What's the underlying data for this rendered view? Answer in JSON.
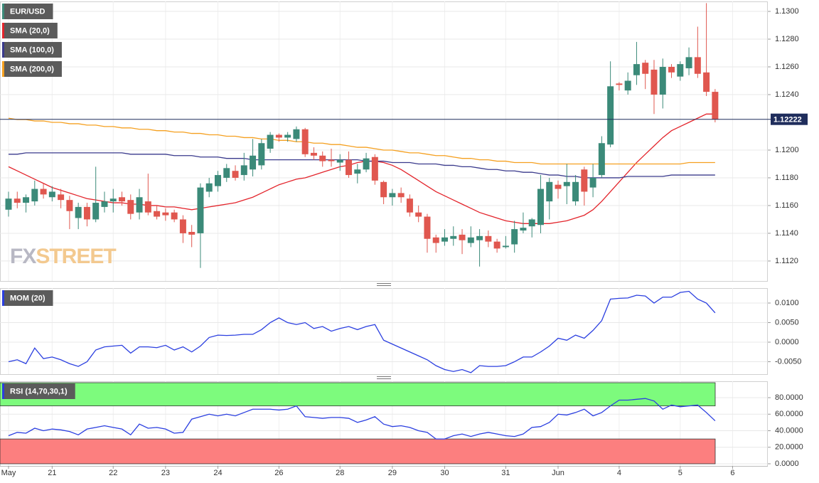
{
  "chart_data": [
    {
      "type": "candlestick",
      "categories": [
        "May",
        null,
        null,
        null,
        null,
        "21",
        null,
        null,
        null,
        null,
        null,
        null,
        "22",
        null,
        null,
        null,
        null,
        null,
        "23",
        null,
        null,
        null,
        null,
        null,
        "24",
        null,
        null,
        null,
        null,
        null,
        null,
        "26",
        null,
        null,
        null,
        null,
        null,
        null,
        "28",
        null,
        null,
        null,
        null,
        null,
        "29",
        null,
        null,
        null,
        null,
        null,
        "30",
        null,
        null,
        null,
        null,
        null,
        null,
        "31",
        null,
        null,
        null,
        null,
        null,
        "Jun",
        null,
        null,
        null,
        null,
        null,
        null,
        "4",
        null,
        null,
        null,
        null,
        null,
        null,
        "5",
        null,
        null,
        null,
        null,
        null,
        "6"
      ],
      "series": [
        {
          "name": "EUR/USD",
          "up_color": "#3b8a79",
          "down_color": "#e0574f",
          "open": [
            1.1157,
            1.1165,
            1.1162,
            1.1163,
            1.1172,
            1.1166,
            1.1168,
            1.1164,
            1.1151,
            1.1159,
            1.115,
            1.1159,
            1.1163,
            1.1166,
            1.1164,
            1.1155,
            1.1163,
            1.1156,
            1.1155,
            1.1155,
            1.115,
            1.1141,
            1.114,
            1.117,
            1.1174,
            1.118,
            1.1185,
            1.1182,
            1.1186,
            1.1189,
            1.1201,
            1.1211,
            1.1209,
            1.1208,
            1.1215,
            1.1198,
            1.1196,
            1.1193,
            1.1191,
            1.1193,
            1.1183,
            1.1186,
            1.1195,
            1.1177,
            1.1166,
            1.1169,
            1.1165,
            1.1155,
            1.1152,
            1.1137,
            1.1134,
            1.1136,
            1.1139,
            1.1133,
            1.1135,
            1.1138,
            1.1134,
            1.113,
            1.1132,
            1.1142,
            1.1145,
            1.1146,
            1.1163,
            1.1175,
            1.1174,
            1.1163,
            1.1186,
            1.1173,
            1.1182,
            1.1204,
            1.1248,
            1.1243,
            1.1254,
            1.1263,
            1.1258,
            1.124,
            1.126,
            1.1253,
            1.1259,
            1.1267,
            1.1256,
            1.1242,
            null,
            null
          ],
          "high": [
            1.117,
            1.117,
            1.1168,
            1.1178,
            1.1176,
            1.1174,
            1.1172,
            1.1167,
            1.1162,
            1.1162,
            1.1188,
            1.117,
            1.1172,
            1.117,
            1.1168,
            1.1172,
            1.1183,
            1.116,
            1.1158,
            1.1157,
            1.1153,
            1.1146,
            1.1176,
            1.118,
            1.1185,
            1.119,
            1.1189,
            1.1198,
            1.1208,
            1.1208,
            1.1213,
            1.1212,
            1.1213,
            1.1217,
            1.1216,
            1.1202,
            1.1199,
            1.1201,
            1.1197,
            1.1199,
            1.119,
            1.1198,
            1.1197,
            1.1178,
            1.1172,
            1.1173,
            1.1168,
            1.116,
            1.1154,
            1.1139,
            1.1143,
            1.1145,
            1.1143,
            1.1145,
            1.1143,
            1.1142,
            1.1136,
            1.1138,
            1.1149,
            1.1155,
            1.1151,
            1.1182,
            1.118,
            1.1178,
            1.119,
            1.1182,
            1.1188,
            1.119,
            1.121,
            1.1264,
            1.1249,
            1.1256,
            1.1278,
            1.1265,
            1.1265,
            1.1266,
            1.1262,
            1.1264,
            1.1274,
            1.1289,
            1.1306,
            1.1244,
            null,
            null
          ],
          "low": [
            1.1152,
            1.1158,
            1.1155,
            1.116,
            1.1165,
            1.1163,
            1.1158,
            1.1143,
            1.1143,
            1.1145,
            1.1148,
            1.1155,
            1.1155,
            1.116,
            1.115,
            1.115,
            1.1153,
            1.115,
            1.1149,
            1.1148,
            1.1133,
            1.113,
            1.1115,
            1.1166,
            1.117,
            1.1177,
            1.1178,
            1.1178,
            1.1181,
            1.1186,
            1.1198,
            1.1206,
            1.1206,
            1.1206,
            1.1195,
            1.1193,
            1.1188,
            1.1188,
            1.1185,
            1.118,
            1.1176,
            1.1184,
            1.1175,
            1.1161,
            1.116,
            1.1162,
            1.1152,
            1.1148,
            1.1126,
            1.1126,
            1.1131,
            1.1131,
            1.1125,
            1.113,
            1.1116,
            1.113,
            1.1126,
            1.1129,
            1.1126,
            1.114,
            1.1137,
            1.114,
            1.115,
            1.1165,
            1.1161,
            1.116,
            1.116,
            1.1166,
            1.118,
            1.1202,
            1.1243,
            1.124,
            1.1247,
            1.1244,
            1.1226,
            1.123,
            1.1252,
            1.125,
            1.1254,
            1.1252,
            1.1239,
            1.122,
            null,
            null
          ],
          "close": [
            1.1165,
            1.1162,
            1.1166,
            1.1172,
            1.1168,
            1.117,
            1.1164,
            1.1156,
            1.1159,
            1.115,
            1.1162,
            1.1163,
            1.1165,
            1.1163,
            1.1154,
            1.1166,
            1.1155,
            1.1152,
            1.1153,
            1.115,
            1.114,
            1.1139,
            1.1173,
            1.1176,
            1.1182,
            1.1187,
            1.118,
            1.1189,
            1.1196,
            1.1205,
            1.1211,
            1.1209,
            1.1211,
            1.1215,
            1.1197,
            1.1196,
            1.1192,
            1.1192,
            1.1193,
            1.1182,
            1.1186,
            1.1194,
            1.1178,
            1.1166,
            1.1169,
            1.1166,
            1.1155,
            1.1152,
            1.1136,
            1.1133,
            1.1137,
            1.1138,
            1.1135,
            1.1137,
            1.1138,
            1.1134,
            1.1129,
            1.1131,
            1.1143,
            1.1144,
            1.115,
            1.1172,
            1.1177,
            1.1172,
            1.1177,
            1.1177,
            1.117,
            1.118,
            1.1205,
            1.1246,
            1.1247,
            1.125,
            1.1262,
            1.1255,
            1.124,
            1.126,
            1.1256,
            1.1262,
            1.1267,
            1.1255,
            1.1242,
            1.1222,
            null,
            null
          ]
        },
        {
          "name": "SMA (20,0)",
          "color": "#e3242b",
          "values": [
            1.1188,
            1.1185,
            1.1182,
            1.1179,
            1.1176,
            1.1173,
            1.1171,
            1.1169,
            1.1167,
            1.1165,
            1.1164,
            1.1163,
            1.1162,
            1.1162,
            1.1161,
            1.1161,
            1.116,
            1.116,
            1.1159,
            1.1159,
            1.1158,
            1.1157,
            1.1158,
            1.1159,
            1.116,
            1.1161,
            1.1162,
            1.1164,
            1.1166,
            1.1169,
            1.1172,
            1.1175,
            1.1177,
            1.1179,
            1.118,
            1.1182,
            1.1184,
            1.1186,
            1.1188,
            1.1189,
            1.1191,
            1.1192,
            1.1192,
            1.1191,
            1.1189,
            1.1186,
            1.1182,
            1.1178,
            1.1174,
            1.117,
            1.1167,
            1.1164,
            1.1161,
            1.1158,
            1.1155,
            1.1153,
            1.1151,
            1.1149,
            1.1148,
            1.1147,
            1.1147,
            1.1147,
            1.1147,
            1.1148,
            1.1149,
            1.1151,
            1.1153,
            1.1157,
            1.1163,
            1.117,
            1.1177,
            1.1184,
            1.1191,
            1.1197,
            1.1203,
            1.1209,
            1.1214,
            1.1217,
            1.122,
            1.1223,
            1.1226,
            1.1226,
            null,
            null
          ]
        },
        {
          "name": "SMA (100,0)",
          "color": "#3a3a8c",
          "values": [
            1.1197,
            1.1197,
            1.1198,
            1.1198,
            1.1198,
            1.1198,
            1.1198,
            1.1198,
            1.1198,
            1.1198,
            1.1198,
            1.1198,
            1.1198,
            1.1198,
            1.1197,
            1.1197,
            1.1197,
            1.1197,
            1.1197,
            1.1196,
            1.1196,
            1.1196,
            1.1195,
            1.1195,
            1.1195,
            1.1194,
            1.1194,
            1.1194,
            1.1193,
            1.1193,
            1.1193,
            1.1193,
            1.1193,
            1.1193,
            1.1193,
            1.1193,
            1.1193,
            1.1193,
            1.1193,
            1.1193,
            1.1193,
            1.1192,
            1.1192,
            1.1192,
            1.1191,
            1.1191,
            1.1191,
            1.119,
            1.119,
            1.119,
            1.1189,
            1.1189,
            1.1188,
            1.1188,
            1.1187,
            1.1186,
            1.1186,
            1.1185,
            1.1185,
            1.1184,
            1.1184,
            1.1183,
            1.1182,
            1.1182,
            1.1181,
            1.1181,
            1.118,
            1.118,
            1.118,
            1.118,
            1.118,
            1.1181,
            1.1181,
            1.1181,
            1.1181,
            1.1181,
            1.1182,
            1.1182,
            1.1182,
            1.1182,
            1.1182,
            1.1182,
            null,
            null
          ]
        },
        {
          "name": "SMA (200,0)",
          "color": "#f5a020",
          "values": [
            1.1223,
            1.1222,
            1.1222,
            1.1221,
            1.1221,
            1.122,
            1.122,
            1.1219,
            1.1219,
            1.1218,
            1.1218,
            1.1217,
            1.1217,
            1.1216,
            1.1216,
            1.1215,
            1.1215,
            1.1214,
            1.1214,
            1.1213,
            1.1213,
            1.1212,
            1.1212,
            1.1211,
            1.1211,
            1.121,
            1.121,
            1.1209,
            1.1209,
            1.1208,
            1.1208,
            1.1207,
            1.1207,
            1.1206,
            1.1206,
            1.1205,
            1.1205,
            1.1204,
            1.1204,
            1.1203,
            1.1202,
            1.1202,
            1.1201,
            1.12,
            1.12,
            1.1199,
            1.1198,
            1.1198,
            1.1197,
            1.1196,
            1.1196,
            1.1195,
            1.1194,
            1.1194,
            1.1193,
            1.1193,
            1.1192,
            1.1192,
            1.1191,
            1.1191,
            1.1191,
            1.119,
            1.119,
            1.119,
            1.119,
            1.119,
            1.119,
            1.119,
            1.119,
            1.119,
            1.119,
            1.119,
            1.119,
            1.119,
            1.119,
            1.119,
            1.119,
            1.119,
            1.1191,
            1.1191,
            1.1191,
            1.1191,
            null,
            null
          ]
        }
      ],
      "ylim": [
        1.11056,
        1.13072
      ],
      "yticks": [
        {
          "value": 1.112,
          "label": "1.1120"
        },
        {
          "value": 1.114,
          "label": "1.1140"
        },
        {
          "value": 1.116,
          "label": "1.1160"
        },
        {
          "value": 1.118,
          "label": "1.1180"
        },
        {
          "value": 1.12,
          "label": "1.1200"
        },
        {
          "value": 1.124,
          "label": "1.1240"
        },
        {
          "value": 1.126,
          "label": "1.1260"
        },
        {
          "value": 1.128,
          "label": "1.1280"
        },
        {
          "value": 1.13,
          "label": "1.1300"
        }
      ],
      "last_price": 1.12222,
      "last_price_color": "#1f2d5c",
      "watermark": [
        "FX",
        "STREET"
      ],
      "grid": true
    },
    {
      "type": "line",
      "series": [
        {
          "name": "MOM (20)",
          "color": "#2b3fe0",
          "values": [
            -0.005,
            -0.0045,
            -0.0055,
            -0.0015,
            -0.0042,
            -0.0038,
            -0.0045,
            -0.0055,
            -0.0062,
            -0.005,
            -0.002,
            -0.0012,
            -0.001,
            -0.0008,
            -0.0028,
            -0.0012,
            -0.0012,
            -0.0014,
            -0.0008,
            -0.002,
            -0.0012,
            -0.0025,
            -0.001,
            0.0012,
            0.0018,
            0.0017,
            0.0018,
            0.002,
            0.002,
            0.0032,
            0.005,
            0.0062,
            0.005,
            0.0045,
            0.005,
            0.0035,
            0.004,
            0.0028,
            0.0035,
            0.004,
            0.0032,
            0.004,
            0.0045,
            0.0005,
            -0.0005,
            -0.0015,
            -0.0025,
            -0.0035,
            -0.0045,
            -0.006,
            -0.007,
            -0.0075,
            -0.007,
            -0.0078,
            -0.006,
            -0.0062,
            -0.0062,
            -0.006,
            -0.005,
            -0.0038,
            -0.0038,
            -0.0025,
            -0.001,
            0.001,
            0.0005,
            0.0018,
            0.001,
            0.003,
            0.0055,
            0.011,
            0.0112,
            0.0113,
            0.012,
            0.0118,
            0.01,
            0.0115,
            0.0115,
            0.0127,
            0.013,
            0.011,
            0.01,
            0.0075,
            null,
            null
          ]
        }
      ],
      "ylim": [
        -0.00818,
        0.01382
      ],
      "yticks": [
        {
          "value": -0.005,
          "label": "-0.0050"
        },
        {
          "value": 0,
          "label": "0.0000"
        },
        {
          "value": 0.005,
          "label": "0.0050"
        },
        {
          "value": 0.01,
          "label": "0.0100"
        }
      ],
      "grid": true
    },
    {
      "type": "line",
      "series": [
        {
          "name": "RSI (14,70,30,1)",
          "color": "#2b3fe0",
          "values": [
            34,
            38,
            37,
            43,
            40,
            42,
            41,
            39,
            35,
            42,
            44,
            46,
            44,
            42,
            35,
            48,
            43,
            44,
            42,
            37,
            38,
            54,
            57,
            60,
            58,
            60,
            58,
            62,
            66,
            66,
            66,
            65,
            66,
            70,
            57,
            56,
            55,
            56,
            56,
            55,
            50,
            53,
            57,
            48,
            45,
            46,
            44,
            40,
            38,
            30,
            30,
            34,
            36,
            33,
            36,
            38,
            36,
            34,
            33,
            36,
            44,
            45,
            50,
            60,
            59,
            62,
            66,
            58,
            62,
            70,
            77,
            77,
            78,
            79,
            76,
            66,
            71,
            69,
            70,
            71,
            62,
            52,
            null,
            null
          ]
        }
      ],
      "ylim": [
        -2.6,
        99.8
      ],
      "yticks": [
        {
          "value": 0,
          "label": "0.0000"
        },
        {
          "value": 20,
          "label": "20.0000"
        },
        {
          "value": 40,
          "label": "40.0000"
        },
        {
          "value": 60,
          "label": "60.0000"
        },
        {
          "value": 80,
          "label": "80.0000"
        }
      ],
      "overbought": 70,
      "oversold": 30,
      "overbought_color": "#7dfb7d",
      "oversold_color": "#fc7f7f",
      "grid": true
    }
  ]
}
